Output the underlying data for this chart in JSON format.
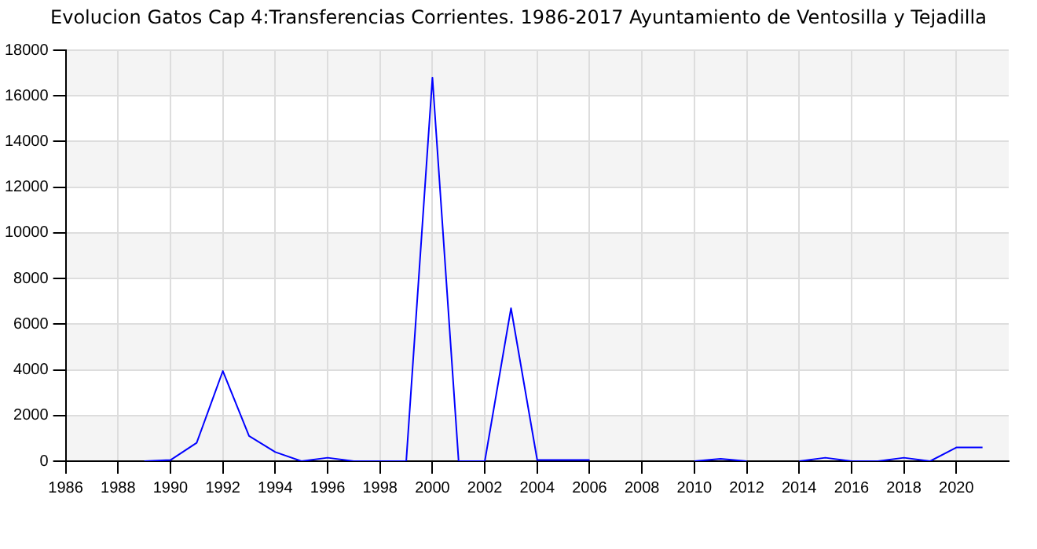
{
  "chart_data": {
    "type": "line",
    "title": "Evolucion Gatos Cap 4:Transferencias Corrientes. 1986-2017 Ayuntamiento de Ventosilla y Tejadilla",
    "x": [
      1989,
      1990,
      1991,
      1992,
      1993,
      1994,
      1995,
      1996,
      1997,
      1998,
      1999,
      2000,
      2001,
      2002,
      2003,
      2004,
      2005,
      2006,
      2007,
      2008,
      2009,
      2010,
      2011,
      2012,
      2013,
      2014,
      2015,
      2016,
      2017,
      2018,
      2019,
      2020,
      2021
    ],
    "series": [
      {
        "color": "#0000ff",
        "values": [
          0,
          50,
          800,
          3950,
          1100,
          400,
          0,
          150,
          0,
          0,
          0,
          16800,
          0,
          0,
          6700,
          50,
          50,
          50,
          null,
          null,
          null,
          0,
          100,
          0,
          null,
          0,
          150,
          0,
          0,
          150,
          0,
          600,
          600
        ]
      }
    ],
    "xlim": [
      1986,
      2022
    ],
    "xticks": [
      1986,
      1988,
      1990,
      1992,
      1994,
      1996,
      1998,
      2000,
      2002,
      2004,
      2006,
      2008,
      2010,
      2012,
      2014,
      2016,
      2018,
      2020
    ],
    "ylim": [
      0,
      18000
    ],
    "yticks": [
      0,
      2000,
      4000,
      6000,
      8000,
      10000,
      12000,
      14000,
      16000,
      18000
    ],
    "grid": true,
    "legend": false,
    "marker": "none",
    "line_style": "solid"
  }
}
